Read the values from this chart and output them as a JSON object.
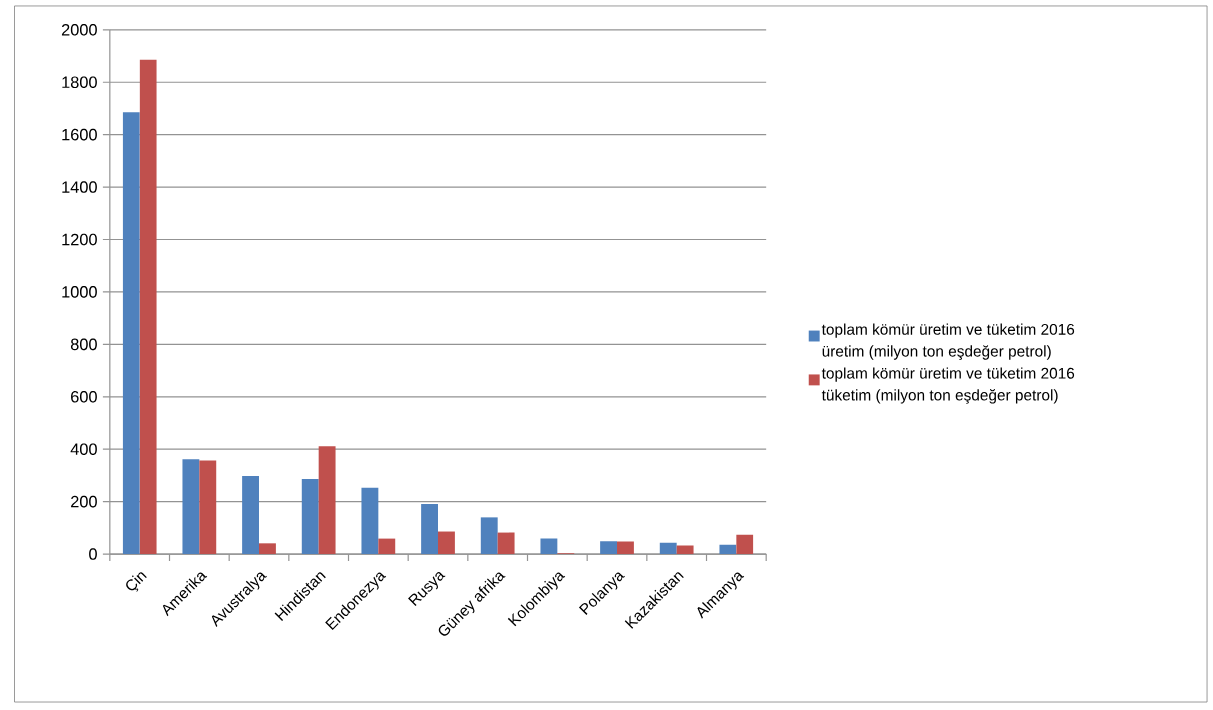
{
  "chart_data": {
    "type": "bar",
    "categories": [
      "Çin",
      "Amerika",
      "Avustralya",
      "Hindistan",
      "Endonezya",
      "Rusya",
      "Güney afrika",
      "Kolombiya",
      "Polanya",
      "Kazakistan",
      "Almanya"
    ],
    "series": [
      {
        "name": "toplam kömür üretim ve tüketim 2016 üretim (milyon ton eşdeğer petrol)",
        "color": "#4f81bd",
        "values": [
          1685,
          362,
          298,
          286,
          253,
          191,
          140,
          59,
          49,
          43,
          36
        ]
      },
      {
        "name": "toplam kömür üretim ve tüketim 2016 tüketim (milyon ton eşdeğer petrol)",
        "color": "#c0504d",
        "values": [
          1886,
          357,
          41,
          411,
          59,
          86,
          82,
          3,
          48,
          33,
          74
        ]
      }
    ],
    "ylim": [
      0,
      2000
    ],
    "yticks": [
      0,
      200,
      400,
      600,
      800,
      1000,
      1200,
      1400,
      1600,
      1800,
      2000
    ],
    "grid": "y",
    "legend": "right"
  }
}
